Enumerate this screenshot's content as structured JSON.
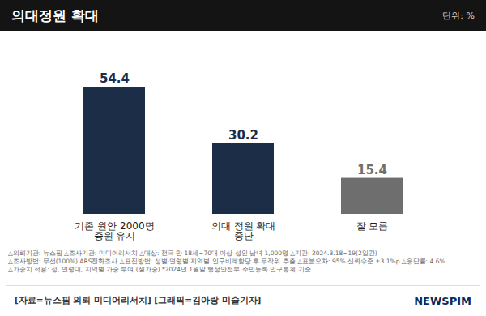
{
  "chart_data": {
    "type": "bar",
    "title": "의대정원 확대",
    "subtitle": "단위: %",
    "categories": [
      "기존 원안 2000명\n증원 유지",
      "의대 정원 확대\n중단",
      "잘 모름"
    ],
    "values": [
      54.4,
      30.2,
      15.4
    ],
    "colors": [
      "#1c2d47",
      "#1c2d47",
      "#6e6e6e"
    ],
    "ylim": [
      0,
      70
    ],
    "data_labels": true,
    "tick_labels": "x",
    "notes": [
      "△의뢰기관: 뉴스핌 △조사기관: 미디어리서치 △대상: 전국 만 18세~70대 이상 성인 남녀 1,000명 △기간: 2024.3.18~19(2일간)",
      "△조사방법: 무선(100%) ARS전화조사 △표집방법: 성별·연령별·지역별 인구비례할당 후 무작위 추출 △표본오차: 95% 신뢰수준 ±3.1%p △응답률: 4.6%",
      "△가중치 적용: 성, 연령대, 지역별 가중 부여 (셀가중) *2024년 1월말 행정안전부 주민등록 인구통계 기준"
    ],
    "source": "[자료=뉴스핌 의뢰 미디어리서치] [그래픽=김아랑 미술기자]",
    "logo": "NEWSPIM"
  }
}
